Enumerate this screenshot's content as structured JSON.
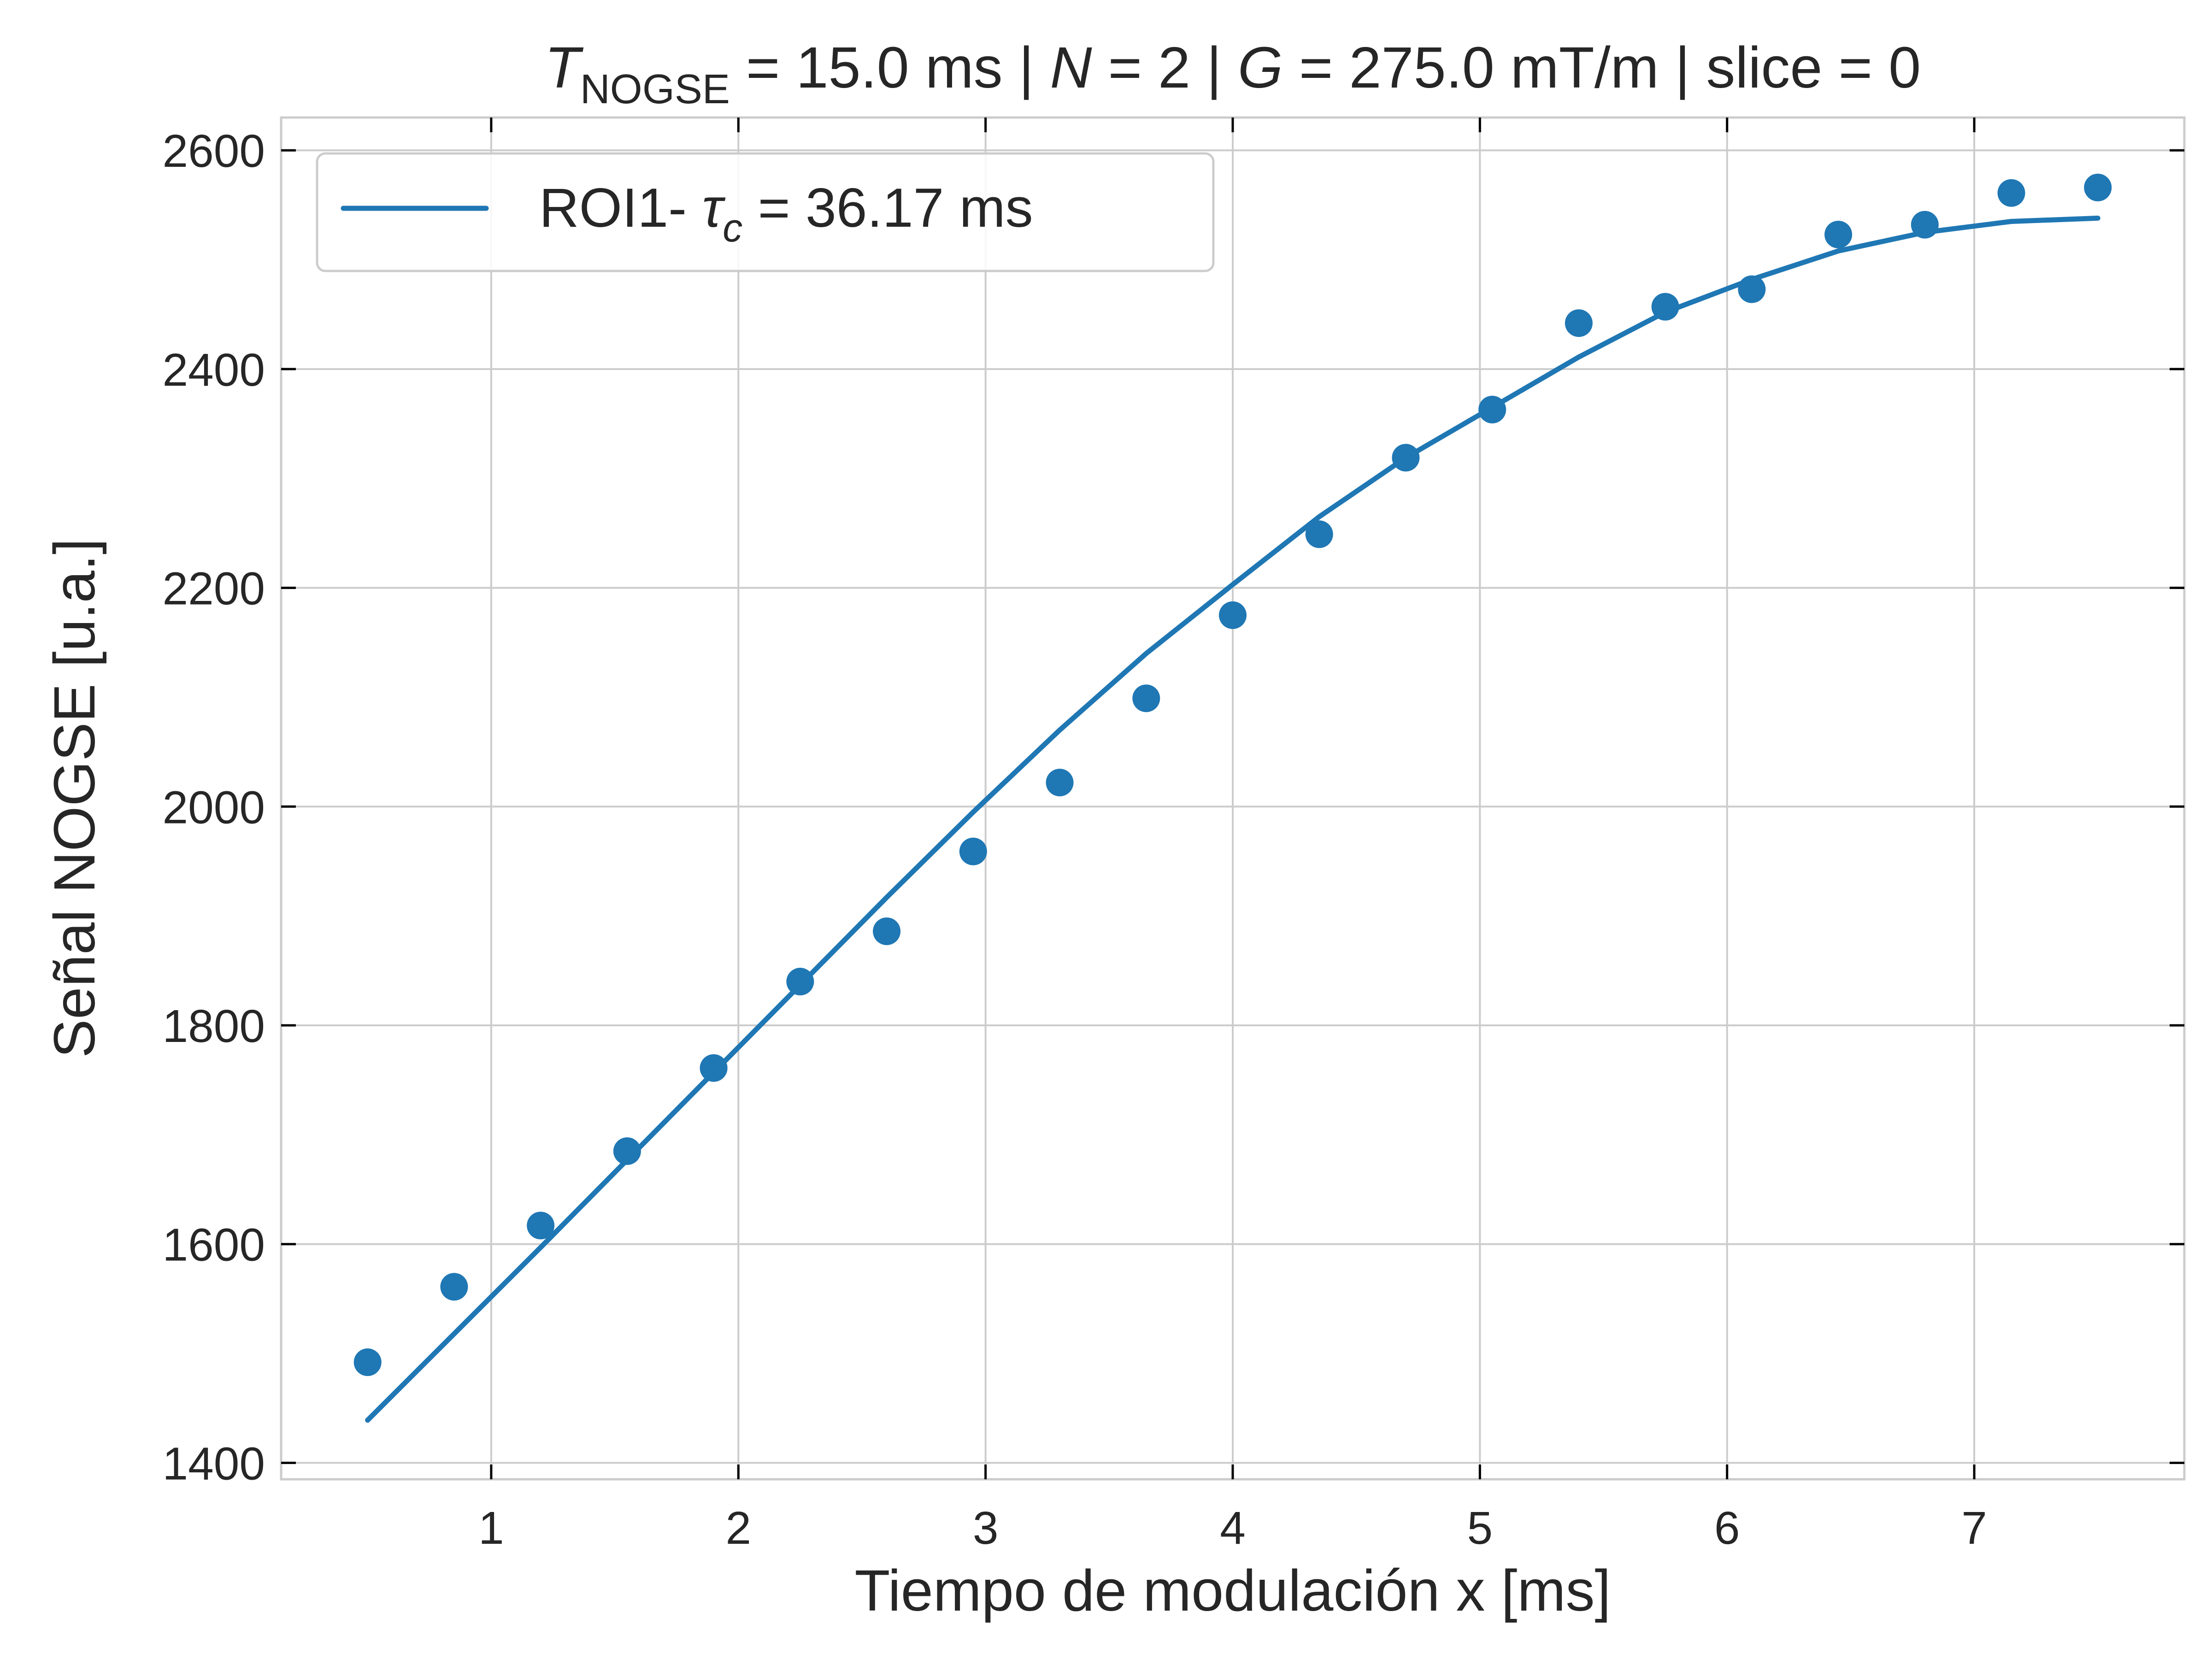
{
  "chart_data": {
    "type": "scatter",
    "title": {
      "t_symbol": "T",
      "t_subscript": "NOGSE",
      "part1": " = 15.0 ms | ",
      "n_symbol": "N",
      "part2": " = 2 | ",
      "g_symbol": "G",
      "part3": " = 275.0 mT/m | slice = 0"
    },
    "xlabel": "Tiempo de modulación x [ms]",
    "ylabel": "Señal NOGSE [u.a.]",
    "xlim": [
      0.15,
      7.85
    ],
    "ylim": [
      1385,
      2630
    ],
    "xticks": [
      1,
      2,
      3,
      4,
      5,
      6,
      7
    ],
    "yticks": [
      1400,
      1600,
      1800,
      2000,
      2200,
      2400,
      2600
    ],
    "grid": true,
    "legend_position": "upper-left",
    "legend": {
      "prefix": "ROI1- ",
      "tau_symbol": "τ",
      "tau_subscript": "c",
      "suffix": " = 36.17 ms"
    },
    "series_color": "#1f77b4",
    "points": {
      "x": [
        0.5,
        0.85,
        1.2,
        1.55,
        1.9,
        2.25,
        2.6,
        2.95,
        3.3,
        3.65,
        4.0,
        4.35,
        4.7,
        5.05,
        5.4,
        5.75,
        6.1,
        6.45,
        6.8,
        7.15,
        7.5
      ],
      "y": [
        1492,
        1561,
        1617,
        1685,
        1761,
        1840,
        1886,
        1959,
        2022,
        2099,
        2175,
        2249,
        2319,
        2363,
        2442,
        2457,
        2473,
        2523,
        2532,
        2561,
        2566
      ]
    },
    "fit": {
      "x": [
        0.5,
        0.85,
        1.2,
        1.55,
        1.9,
        2.25,
        2.6,
        2.95,
        3.3,
        3.65,
        4.0,
        4.35,
        4.7,
        5.05,
        5.4,
        5.75,
        6.1,
        6.45,
        6.8,
        7.15,
        7.5
      ],
      "y": [
        1439,
        1518,
        1597,
        1677,
        1757,
        1837,
        1917,
        1995,
        2070,
        2140,
        2203,
        2265,
        2319,
        2365,
        2411,
        2452,
        2482,
        2508,
        2525,
        2535,
        2538
      ]
    }
  }
}
